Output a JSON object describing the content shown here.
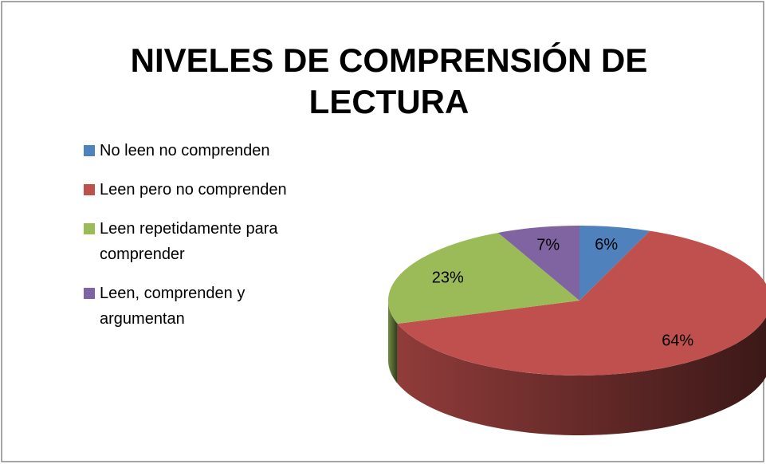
{
  "chart_data": {
    "type": "pie",
    "title": [
      "NIVELES DE COMPRENSIÓN DE",
      "LECTURA"
    ],
    "categories": [
      "No leen no comprenden",
      "Leen pero no comprenden",
      "Leen repetidamente para comprender",
      "Leen, comprenden y argumentan"
    ],
    "values": [
      6,
      64,
      23,
      7
    ],
    "value_labels": [
      "6%",
      "64%",
      "23%",
      "7%"
    ],
    "colors": [
      "#4f81bd",
      "#c0504d",
      "#9bbb59",
      "#8064a2"
    ],
    "legend": "left"
  }
}
